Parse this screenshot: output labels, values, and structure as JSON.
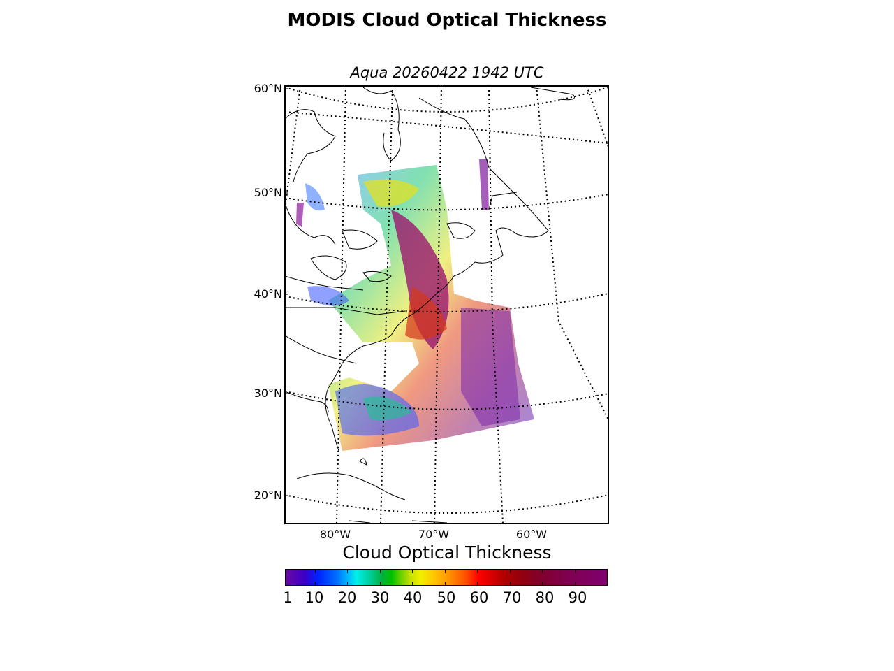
{
  "title": "MODIS Cloud Optical Thickness",
  "subtitle": "Aqua 20260422 1942 UTC",
  "map": {
    "lat_labels": [
      "60°N",
      "50°N",
      "40°N",
      "30°N",
      "20°N"
    ],
    "lon_labels": [
      "80°W",
      "70°W",
      "60°W"
    ]
  },
  "colorbar": {
    "title": "Cloud Optical Thickness",
    "tick_labels": [
      "1",
      "10",
      "20",
      "30",
      "40",
      "50",
      "60",
      "70",
      "80",
      "90"
    ],
    "range": [
      1,
      100
    ],
    "colormap": "spectral/nipy_spectral"
  },
  "colors": {
    "graticule": "#000000",
    "coastline": "#000000"
  }
}
